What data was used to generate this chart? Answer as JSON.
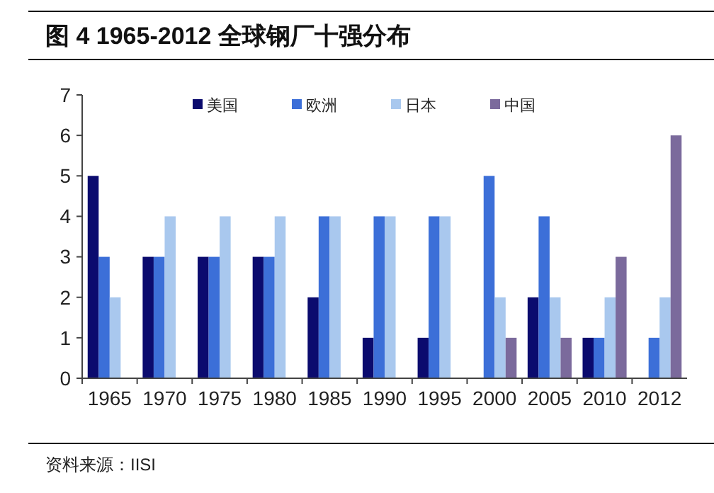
{
  "chart_data": {
    "type": "bar",
    "title": "图 4 1965-2012 全球钢厂十强分布",
    "categories": [
      "1965",
      "1970",
      "1975",
      "1980",
      "1985",
      "1990",
      "1995",
      "2000",
      "2005",
      "2010",
      "2012"
    ],
    "series": [
      {
        "name": "美国",
        "color": "#0b0b6e",
        "values": [
          5,
          3,
          3,
          3,
          2,
          1,
          1,
          0,
          2,
          1,
          0
        ]
      },
      {
        "name": "欧洲",
        "color": "#3c6fd8",
        "values": [
          3,
          3,
          3,
          3,
          4,
          4,
          4,
          5,
          4,
          1,
          1
        ]
      },
      {
        "name": "日本",
        "color": "#a9c8ee",
        "values": [
          2,
          4,
          4,
          4,
          4,
          4,
          4,
          2,
          2,
          2,
          2
        ]
      },
      {
        "name": "中国",
        "color": "#7b6a9c",
        "values": [
          0,
          0,
          0,
          0,
          0,
          0,
          0,
          1,
          1,
          3,
          6
        ]
      }
    ],
    "ylim": [
      0,
      7
    ],
    "yticks": [
      0,
      1,
      2,
      3,
      4,
      5,
      6,
      7
    ],
    "grid": false,
    "legend": "top",
    "annotations": [
      "资料来源：IISI"
    ]
  }
}
